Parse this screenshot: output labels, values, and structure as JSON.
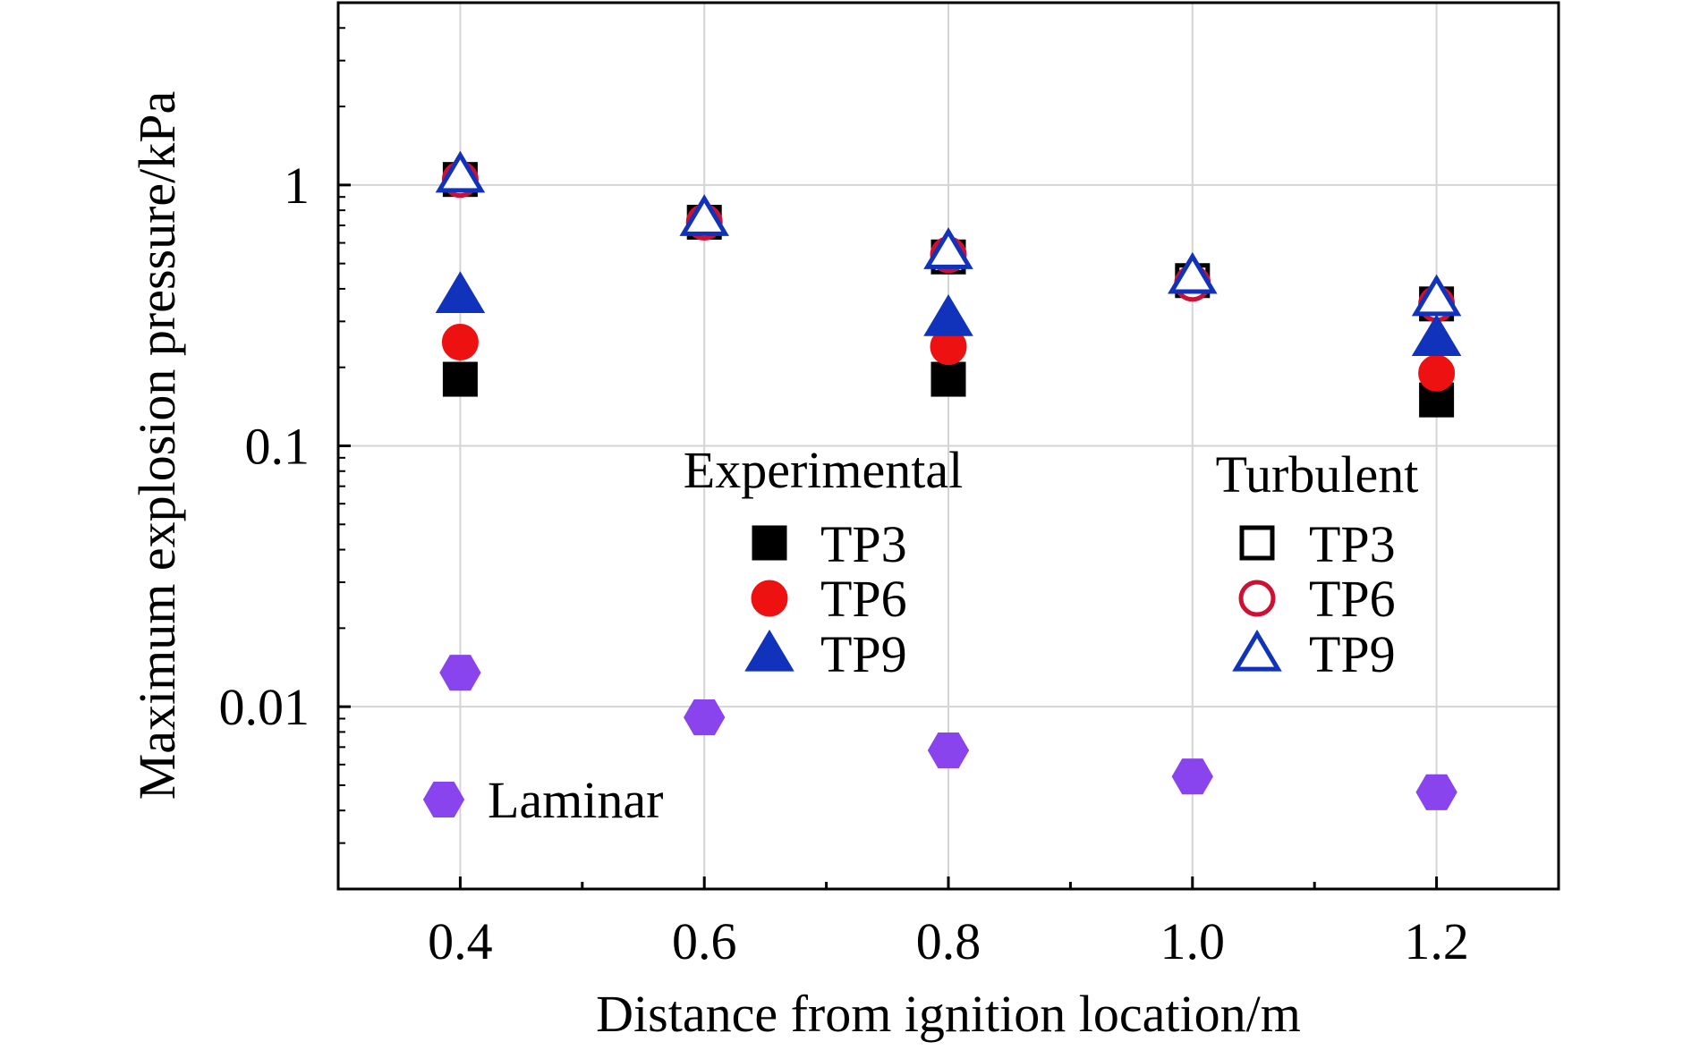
{
  "chart_data": {
    "type": "scatter",
    "xlabel": "Distance from ignition location/m",
    "ylabel": "Maximum explosion pressure/kPa",
    "x_scale": "linear",
    "y_scale": "log",
    "xlim": [
      0.3,
      1.3
    ],
    "ylim": [
      0.002,
      5
    ],
    "x_ticks": [
      0.4,
      0.6,
      0.8,
      1.0,
      1.2
    ],
    "x_tick_labels": [
      "0.4",
      "0.6",
      "0.8",
      "1.0",
      "1.2"
    ],
    "y_ticks": [
      0.01,
      0.1,
      1
    ],
    "y_tick_labels": [
      "0.01",
      "0.1",
      "1"
    ],
    "grid": true,
    "legend_groups": [
      {
        "title": "Experimental",
        "placement": "center"
      },
      {
        "title": "Turbulent",
        "placement": "center-right"
      },
      {
        "title": "",
        "placement": "bottom-left"
      }
    ],
    "series": [
      {
        "name": "TP3",
        "group": "Experimental",
        "marker": "square",
        "filled": true,
        "color": "#000000",
        "x": [
          0.4,
          0.8,
          1.2
        ],
        "y": [
          0.18,
          0.18,
          0.15
        ]
      },
      {
        "name": "TP6",
        "group": "Experimental",
        "marker": "circle",
        "filled": true,
        "color": "#ee1111",
        "x": [
          0.4,
          0.8,
          1.2
        ],
        "y": [
          0.25,
          0.24,
          0.19
        ]
      },
      {
        "name": "TP9",
        "group": "Experimental",
        "marker": "triangle",
        "filled": true,
        "color": "#1133bb",
        "x": [
          0.4,
          0.8,
          1.2
        ],
        "y": [
          0.38,
          0.31,
          0.26
        ]
      },
      {
        "name": "TP3",
        "group": "Turbulent",
        "marker": "square",
        "filled": false,
        "color": "#000000",
        "x": [
          0.4,
          0.6,
          0.8,
          1.0,
          1.2
        ],
        "y": [
          1.05,
          0.72,
          0.53,
          0.43,
          0.35
        ]
      },
      {
        "name": "TP6",
        "group": "Turbulent",
        "marker": "circle",
        "filled": false,
        "color": "#cc1133",
        "x": [
          0.4,
          0.6,
          0.8,
          1.0,
          1.2
        ],
        "y": [
          1.05,
          0.72,
          0.54,
          0.42,
          0.35
        ]
      },
      {
        "name": "TP9",
        "group": "Turbulent",
        "marker": "triangle",
        "filled": false,
        "color": "#1133bb",
        "x": [
          0.4,
          0.6,
          0.8,
          1.0,
          1.2
        ],
        "y": [
          1.1,
          0.75,
          0.56,
          0.45,
          0.37
        ]
      },
      {
        "name": "Laminar",
        "group": "",
        "marker": "hexagon",
        "filled": true,
        "color": "#8a44ee",
        "x": [
          0.4,
          0.6,
          0.8,
          1.0,
          1.2
        ],
        "y": [
          0.0135,
          0.0091,
          0.0068,
          0.0054,
          0.0047
        ]
      }
    ]
  }
}
